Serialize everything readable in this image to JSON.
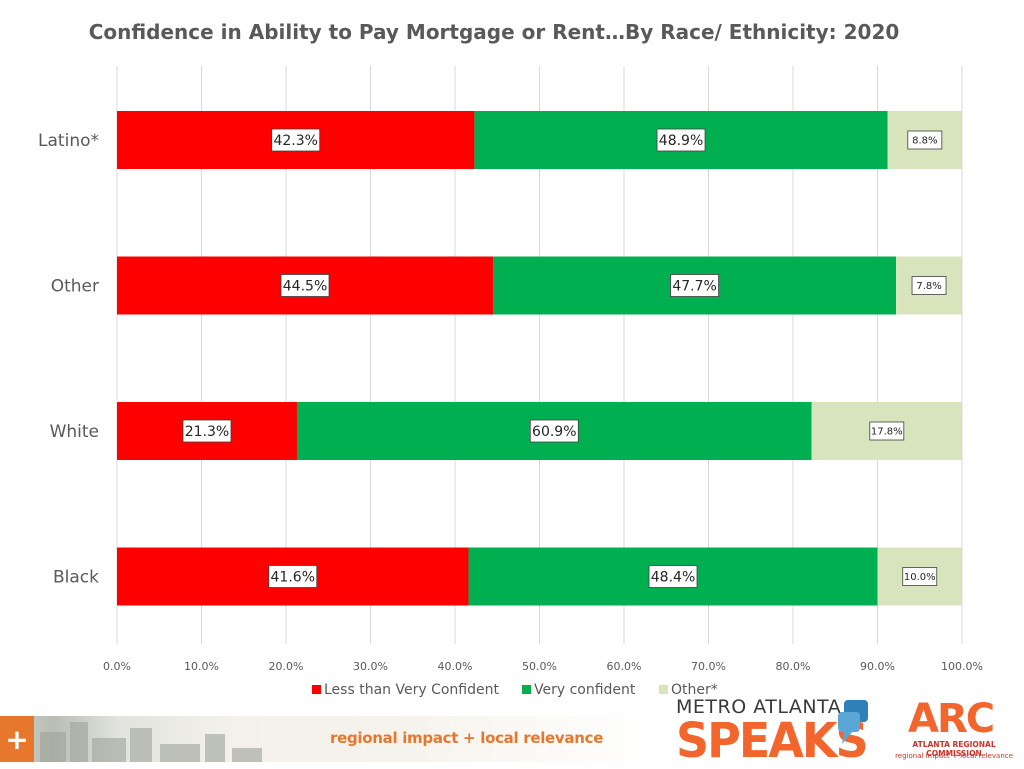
{
  "colors": {
    "less_than_very_confident": "#ff0000",
    "very_confident": "#00b050",
    "other": "#d8e4bc",
    "text": "#595959",
    "grid": "#d9d9d9",
    "brand_orange": "#f2662e"
  },
  "chart_data": {
    "type": "bar",
    "orientation": "horizontal",
    "stacked": true,
    "title": "Confidence in Ability to Pay Mortgage or Rent…By Race/ Ethnicity: 2020",
    "categories": [
      "Latino*",
      "Other",
      "White",
      "Black"
    ],
    "series": [
      {
        "name": "Less than Very Confident",
        "color": "#ff0000",
        "values": [
          42.3,
          44.5,
          21.3,
          41.6
        ],
        "labels": [
          "42.3%",
          "44.5%",
          "21.3%",
          "41.6%"
        ]
      },
      {
        "name": "Very confident",
        "color": "#00b050",
        "values": [
          48.9,
          47.7,
          60.9,
          48.4
        ],
        "labels": [
          "48.9%",
          "47.7%",
          "60.9%",
          "48.4%"
        ]
      },
      {
        "name": "Other*",
        "color": "#d8e4bc",
        "values": [
          8.8,
          7.8,
          17.8,
          10.0
        ],
        "labels": [
          "8.8%",
          "7.8%",
          "17.8%",
          "10.0%"
        ]
      }
    ],
    "xlim": [
      0,
      100
    ],
    "xticks": [
      "0.0%",
      "10.0%",
      "20.0%",
      "30.0%",
      "40.0%",
      "50.0%",
      "60.0%",
      "70.0%",
      "80.0%",
      "90.0%",
      "100.0%"
    ],
    "grid": true,
    "legend_position": "bottom"
  },
  "footer": {
    "tagline": "regional impact + local relevance",
    "plus_symbol": "+",
    "logo_metro_top": "METRO ATLANTA",
    "logo_metro_bottom": "SPEAKS",
    "logo_arc_letters": "ARC",
    "logo_arc_name": "ATLANTA REGIONAL COMMISSION",
    "logo_arc_tagline": "regional impact + local relevance"
  }
}
